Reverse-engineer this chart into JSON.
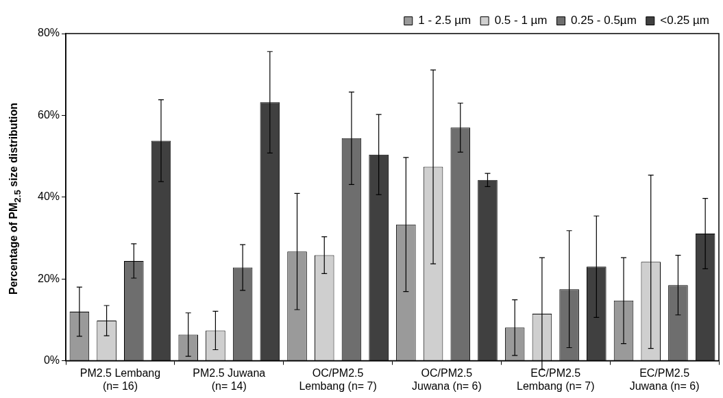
{
  "chart_data": {
    "type": "bar",
    "ylabel": "Percentage of PM$_{2.5}$ size distribution",
    "categories": [
      "PM2.5 Lembang\n(n= 16)",
      "PM2.5 Juwana\n(n= 14)",
      "OC/PM2.5\nLembang (n= 7)",
      "OC/PM2.5\nJuwana (n= 6)",
      "EC/PM2.5\nLembang (n= 7)",
      "EC/PM2.5\nJuwana (n= 6)"
    ],
    "series": [
      {
        "name": "1 - 2.5 µm",
        "color": "#9a9a9a",
        "values": [
          12.0,
          6.4,
          26.7,
          33.3,
          8.1,
          14.7
        ],
        "errors": [
          6.0,
          5.3,
          14.2,
          16.4,
          6.8,
          10.5
        ]
      },
      {
        "name": "0.5 - 1 µm",
        "color": "#cfcfcf",
        "values": [
          9.8,
          7.4,
          25.8,
          47.4,
          11.5,
          24.2
        ],
        "errors": [
          3.7,
          4.7,
          4.5,
          23.7,
          13.7,
          21.2
        ]
      },
      {
        "name": "0.25 - 0.5µm",
        "color": "#6e6e6e",
        "values": [
          24.4,
          22.8,
          54.4,
          57.0,
          17.5,
          18.5
        ],
        "errors": [
          4.2,
          5.6,
          11.3,
          6.0,
          14.3,
          7.3
        ]
      },
      {
        "name": "<0.25 µm",
        "color": "#404040",
        "values": [
          53.8,
          63.2,
          50.4,
          44.2,
          23.0,
          31.1
        ],
        "errors": [
          10.0,
          12.4,
          9.8,
          1.6,
          12.4,
          8.6
        ]
      }
    ],
    "ylim": [
      0,
      80
    ],
    "yticks": [
      {
        "value": 0,
        "label": "0%"
      },
      {
        "value": 20,
        "label": "20%"
      },
      {
        "value": 40,
        "label": "40%"
      },
      {
        "value": 60,
        "label": "60%"
      },
      {
        "value": 80,
        "label": "80%"
      }
    ],
    "grid": false,
    "legend": "top right"
  }
}
